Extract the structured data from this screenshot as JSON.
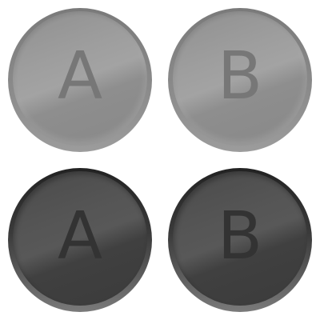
{
  "buttons": {
    "a_light": {
      "label": "A"
    },
    "b_light": {
      "label": "B"
    },
    "a_dark": {
      "label": "A"
    },
    "b_dark": {
      "label": "B"
    }
  },
  "colors": {
    "light_face": "#9e9e9e",
    "light_letter": "#777777",
    "dark_face": "#555555",
    "dark_letter": "#333333"
  }
}
